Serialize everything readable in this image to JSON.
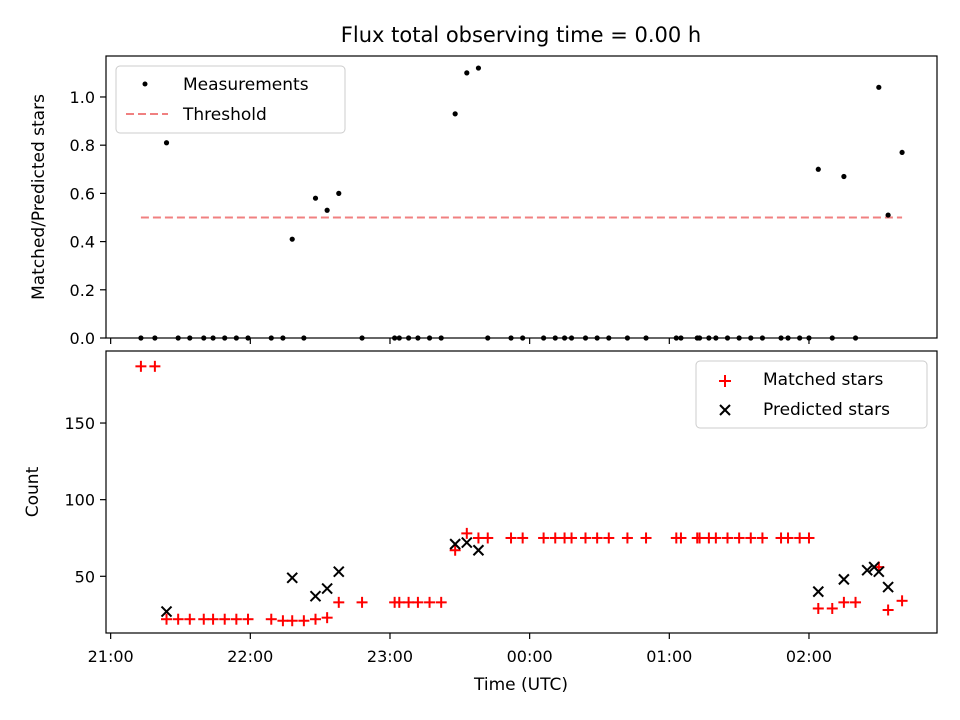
{
  "title": "Flux total observing time = 0.00 h",
  "chart_data": [
    {
      "type": "scatter",
      "ylabel": "Matched/Predicted stars",
      "xlabel": "",
      "ylim": [
        0,
        1.17
      ],
      "yticks": [
        0.0,
        0.2,
        0.4,
        0.6,
        0.8,
        1.0
      ],
      "ytick_labels": [
        "0.0",
        "0.2",
        "0.4",
        "0.6",
        "0.8",
        "1.0"
      ],
      "legend": {
        "position": "upper-left",
        "entries": [
          "Measurements",
          "Threshold"
        ]
      },
      "series": [
        {
          "name": "Measurements",
          "color": "#000000",
          "marker": "dot",
          "x": [
            "21:13",
            "21:19",
            "21:24",
            "21:29",
            "21:34",
            "21:40",
            "21:44",
            "21:49",
            "21:54",
            "21:59",
            "22:09",
            "22:14",
            "22:18",
            "22:23",
            "22:28",
            "22:33",
            "22:38",
            "22:48",
            "23:02",
            "23:04",
            "23:08",
            "23:12",
            "23:17",
            "23:22",
            "23:28",
            "23:33",
            "23:38",
            "23:42",
            "23:52",
            "23:57",
            "00:06",
            "00:11",
            "00:15",
            "00:18",
            "00:24",
            "00:29",
            "00:34",
            "00:42",
            "00:50",
            "01:03",
            "01:05",
            "01:12",
            "01:13",
            "01:17",
            "01:20",
            "01:25",
            "01:30",
            "01:35",
            "01:40",
            "01:48",
            "01:51",
            "01:56",
            "02:00",
            "02:04",
            "02:10",
            "02:15",
            "02:20",
            "02:30",
            "02:34",
            "02:40"
          ],
          "y": [
            0,
            0,
            0.81,
            0,
            0,
            0,
            0,
            0,
            0,
            0,
            0,
            0,
            0.41,
            0,
            0.58,
            0.53,
            0.6,
            0,
            0,
            0,
            0,
            0,
            0,
            0,
            0.93,
            1.1,
            1.12,
            0,
            0,
            0,
            0,
            0,
            0,
            0,
            0,
            0,
            0,
            0,
            0,
            0,
            0,
            0,
            0,
            0,
            0,
            0,
            0,
            0,
            0,
            0,
            0,
            0,
            0,
            0.7,
            0,
            0.67,
            0,
            1.04,
            0.51,
            0.77
          ]
        },
        {
          "name": "Threshold",
          "color": "#f08080",
          "style": "dashed",
          "x": [
            "21:13",
            "02:40"
          ],
          "y": [
            0.5,
            0.5
          ]
        }
      ]
    },
    {
      "type": "scatter",
      "ylabel": "Count",
      "xlabel": "Time (UTC)",
      "ylim": [
        13,
        197
      ],
      "yticks": [
        50,
        100,
        150
      ],
      "ytick_labels": [
        "50",
        "100",
        "150"
      ],
      "x_range": [
        "20:58",
        "02:55"
      ],
      "xticks": [
        "21:00",
        "22:00",
        "23:00",
        "00:00",
        "01:00",
        "02:00"
      ],
      "xtick_labels": [
        "21:00",
        "22:00",
        "23:00",
        "00:00",
        "01:00",
        "02:00"
      ],
      "legend": {
        "position": "upper-right",
        "entries": [
          "Matched stars",
          "Predicted stars"
        ]
      },
      "series": [
        {
          "name": "Matched stars",
          "color": "#ff0000",
          "marker": "plus",
          "x": [
            "21:13",
            "21:19",
            "21:24",
            "21:29",
            "21:34",
            "21:40",
            "21:44",
            "21:49",
            "21:54",
            "21:59",
            "22:09",
            "22:14",
            "22:18",
            "22:23",
            "22:28",
            "22:33",
            "22:38",
            "22:48",
            "23:02",
            "23:04",
            "23:08",
            "23:12",
            "23:17",
            "23:22",
            "23:28",
            "23:33",
            "23:38",
            "23:42",
            "23:52",
            "23:57",
            "00:06",
            "00:11",
            "00:15",
            "00:18",
            "00:24",
            "00:29",
            "00:34",
            "00:42",
            "00:50",
            "01:03",
            "01:05",
            "01:12",
            "01:13",
            "01:17",
            "01:20",
            "01:25",
            "01:30",
            "01:35",
            "01:40",
            "01:48",
            "01:51",
            "01:56",
            "02:00",
            "02:04",
            "02:10",
            "02:15",
            "02:20",
            "02:30",
            "02:34",
            "02:40"
          ],
          "y": [
            187,
            187,
            22,
            22,
            22,
            22,
            22,
            22,
            22,
            22,
            22,
            21,
            21,
            21,
            22,
            23,
            33,
            33,
            33,
            33,
            33,
            33,
            33,
            33,
            67,
            78,
            75,
            75,
            75,
            75,
            75,
            75,
            75,
            75,
            75,
            75,
            75,
            75,
            75,
            75,
            75,
            75,
            75,
            75,
            75,
            75,
            75,
            75,
            75,
            75,
            75,
            75,
            75,
            29,
            29,
            33,
            33,
            56,
            28,
            34
          ]
        },
        {
          "name": "Predicted stars",
          "color": "#000000",
          "marker": "x",
          "x": [
            "21:24",
            "22:18",
            "22:28",
            "22:33",
            "22:38",
            "23:28",
            "23:33",
            "23:38",
            "02:04",
            "02:15",
            "02:25",
            "02:28",
            "02:30",
            "02:34"
          ],
          "y": [
            27,
            49,
            37,
            42,
            53,
            71,
            72,
            67,
            40,
            48,
            54,
            56,
            53,
            43
          ]
        }
      ]
    }
  ]
}
